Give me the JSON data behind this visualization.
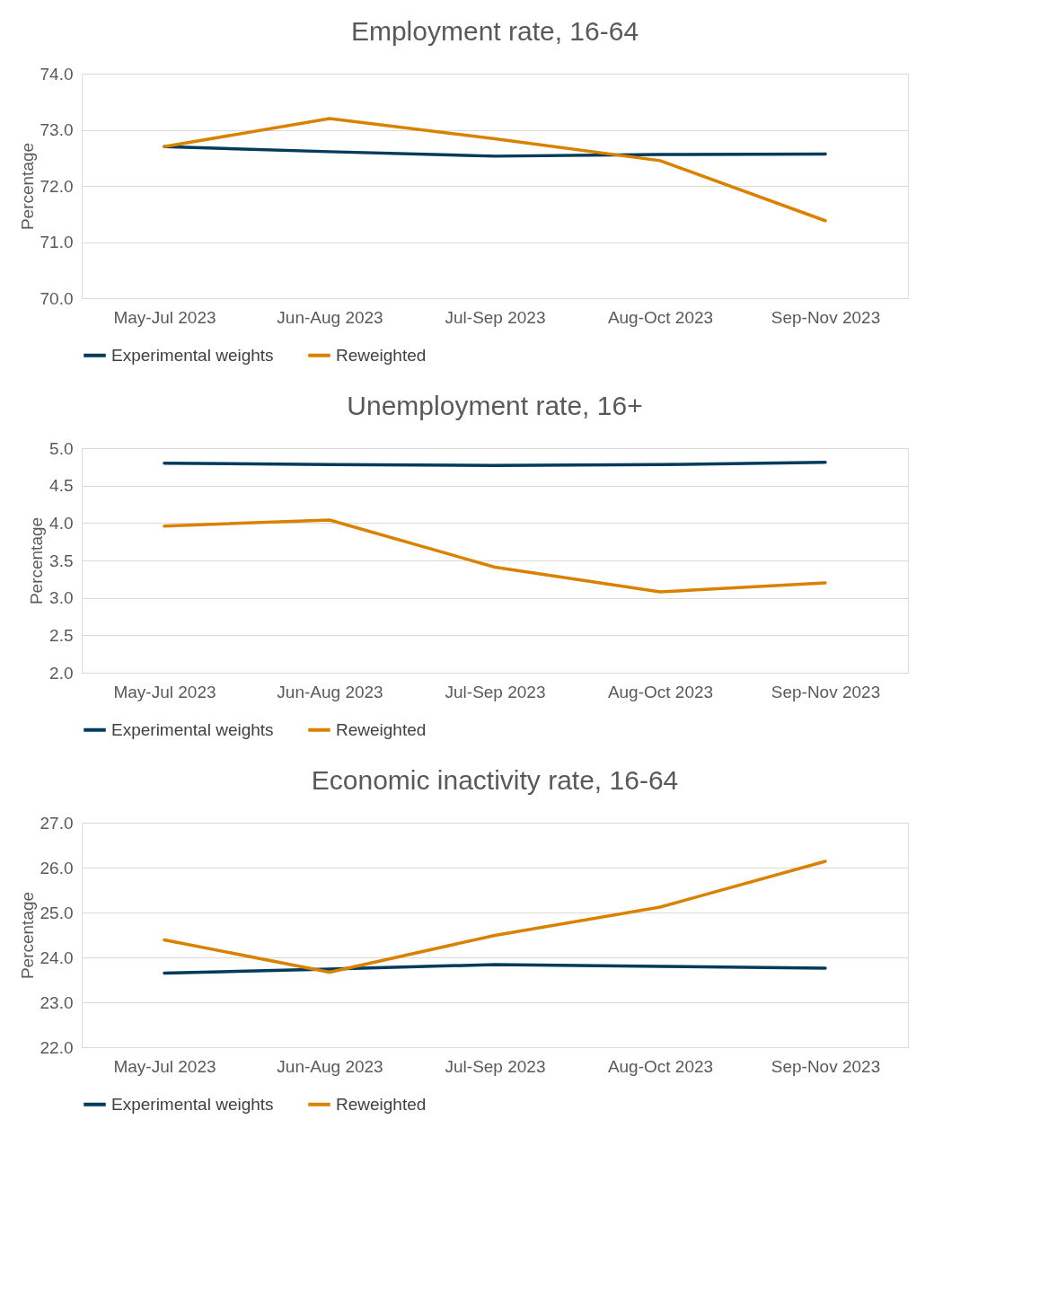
{
  "chart_data": [
    {
      "type": "line",
      "title": "Employment rate, 16-64",
      "ylabel": "Percentage",
      "categories": [
        "May-Jul 2023",
        "Jun-Aug 2023",
        "Jul-Sep 2023",
        "Aug-Oct 2023",
        "Sep-Nov 2023"
      ],
      "series": [
        {
          "name": "Experimental weights",
          "color": "#003b5c",
          "values": [
            72.7,
            72.61,
            72.53,
            72.56,
            72.57
          ]
        },
        {
          "name": "Reweighted",
          "color": "#d98100",
          "values": [
            72.7,
            73.2,
            72.84,
            72.45,
            71.38
          ]
        }
      ],
      "ylim": [
        70,
        74
      ],
      "yticks": [
        {
          "value": 70,
          "label": "70.0"
        },
        {
          "value": 71,
          "label": "71.0"
        },
        {
          "value": 72,
          "label": "72.0"
        },
        {
          "value": 73,
          "label": "73.0"
        },
        {
          "value": 74,
          "label": "74.0"
        }
      ],
      "grid": "y",
      "legend": "bottom"
    },
    {
      "type": "line",
      "title": "Unemployment rate, 16+",
      "ylabel": "Percentage",
      "categories": [
        "May-Jul 2023",
        "Jun-Aug 2023",
        "Jul-Sep 2023",
        "Aug-Oct 2023",
        "Sep-Nov 2023"
      ],
      "series": [
        {
          "name": "Experimental weights",
          "color": "#003b5c",
          "values": [
            4.8,
            4.78,
            4.77,
            4.78,
            4.81
          ]
        },
        {
          "name": "Reweighted",
          "color": "#d98100",
          "values": [
            3.96,
            4.04,
            3.41,
            3.08,
            3.2
          ]
        }
      ],
      "ylim": [
        2,
        5
      ],
      "yticks": [
        {
          "value": 2,
          "label": "2.0"
        },
        2.5,
        {
          "value": 3,
          "label": "3.0"
        },
        3.5,
        {
          "value": 4,
          "label": "4.0"
        },
        4.5,
        {
          "value": 5,
          "label": "5.0"
        }
      ],
      "grid": "y",
      "legend": "bottom"
    },
    {
      "type": "line",
      "title": "Economic inactivity rate, 16-64",
      "ylabel": "Percentage",
      "categories": [
        "May-Jul 2023",
        "Jun-Aug 2023",
        "Jul-Sep 2023",
        "Aug-Oct 2023",
        "Sep-Nov 2023"
      ],
      "series": [
        {
          "name": "Experimental weights",
          "color": "#003b5c",
          "values": [
            23.65,
            23.74,
            23.84,
            23.8,
            23.76
          ]
        },
        {
          "name": "Reweighted",
          "color": "#d98100",
          "values": [
            24.39,
            23.67,
            24.49,
            25.12,
            26.14
          ]
        }
      ],
      "ylim": [
        22,
        27
      ],
      "yticks": [
        {
          "value": 22,
          "label": "22.0"
        },
        {
          "value": 23,
          "label": "23.0"
        },
        {
          "value": 24,
          "label": "24.0"
        },
        {
          "value": 25,
          "label": "25.0"
        },
        {
          "value": 26,
          "label": "26.0"
        },
        {
          "value": 27,
          "label": "27.0"
        }
      ],
      "grid": "y",
      "legend": "bottom"
    }
  ]
}
